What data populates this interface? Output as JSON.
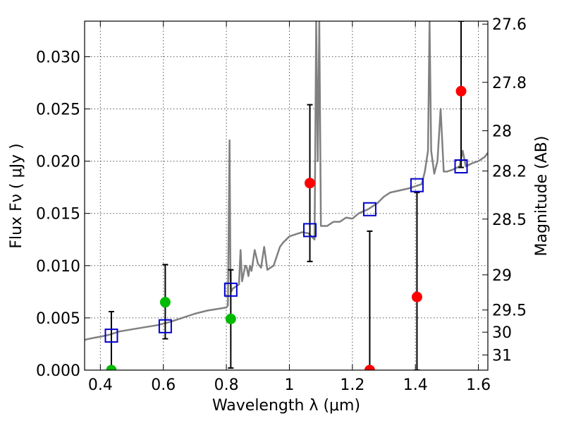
{
  "chart_data": {
    "type": "scatter",
    "xlabel": "Wavelength  λ (μm)",
    "ylabel_left": "Flux  Fν  ( μJy )",
    "ylabel_right": "Magnitude (AB)",
    "xlim": [
      0.35,
      1.63
    ],
    "ylim": [
      0.0,
      0.0334
    ],
    "x_ticks": [
      0.4,
      0.6,
      0.8,
      1.0,
      1.2,
      1.4,
      1.6
    ],
    "x_tick_labels": [
      "0.4",
      "0.6",
      "0.8",
      "1",
      "1.2",
      "1.4",
      "1.6"
    ],
    "y_ticks": [
      0.0,
      0.005,
      0.01,
      0.015,
      0.02,
      0.025,
      0.03
    ],
    "y_tick_labels": [
      "0.000",
      "0.005",
      "0.010",
      "0.015",
      "0.020",
      "0.025",
      "0.030"
    ],
    "mag_ticks": [
      27.6,
      27.8,
      28,
      28.2,
      28.5,
      29,
      29.5,
      30,
      31
    ],
    "mag_tick_labels": [
      "27.6",
      "27.8",
      "28",
      "28.2",
      "28.5",
      "29",
      "29.5",
      "30",
      "31"
    ],
    "grid": true,
    "colors": {
      "model": "#808080",
      "model_phot": "#0000cc",
      "detection": "#00bb00",
      "upper_limit": "#ff0000",
      "errorbar": "#000000"
    },
    "model_spectrum": [
      [
        0.35,
        0.0029
      ],
      [
        0.38,
        0.0031
      ],
      [
        0.4,
        0.0032
      ],
      [
        0.43,
        0.0034
      ],
      [
        0.46,
        0.0037
      ],
      [
        0.5,
        0.0039
      ],
      [
        0.54,
        0.0041
      ],
      [
        0.58,
        0.0043
      ],
      [
        0.62,
        0.0046
      ],
      [
        0.66,
        0.005
      ],
      [
        0.7,
        0.0054
      ],
      [
        0.74,
        0.0057
      ],
      [
        0.78,
        0.0059
      ],
      [
        0.8,
        0.006
      ],
      [
        0.805,
        0.0062
      ],
      [
        0.81,
        0.022
      ],
      [
        0.813,
        0.009
      ],
      [
        0.815,
        0.0075
      ],
      [
        0.82,
        0.0078
      ],
      [
        0.84,
        0.0082
      ],
      [
        0.845,
        0.0115
      ],
      [
        0.85,
        0.0085
      ],
      [
        0.86,
        0.01
      ],
      [
        0.865,
        0.0098
      ],
      [
        0.87,
        0.009
      ],
      [
        0.875,
        0.01
      ],
      [
        0.88,
        0.0095
      ],
      [
        0.89,
        0.0115
      ],
      [
        0.9,
        0.0102
      ],
      [
        0.91,
        0.0098
      ],
      [
        0.92,
        0.0118
      ],
      [
        0.93,
        0.0096
      ],
      [
        0.95,
        0.01
      ],
      [
        0.97,
        0.0118
      ],
      [
        0.98,
        0.0122
      ],
      [
        1.0,
        0.0128
      ],
      [
        1.02,
        0.013
      ],
      [
        1.04,
        0.0132
      ],
      [
        1.06,
        0.0131
      ],
      [
        1.08,
        0.0125
      ],
      [
        1.085,
        0.0334
      ],
      [
        1.09,
        0.02
      ],
      [
        1.095,
        0.0334
      ],
      [
        1.1,
        0.0138
      ],
      [
        1.12,
        0.0138
      ],
      [
        1.14,
        0.0142
      ],
      [
        1.16,
        0.0142
      ],
      [
        1.18,
        0.0146
      ],
      [
        1.2,
        0.0145
      ],
      [
        1.22,
        0.015
      ],
      [
        1.25,
        0.0154
      ],
      [
        1.28,
        0.016
      ],
      [
        1.3,
        0.0166
      ],
      [
        1.32,
        0.017
      ],
      [
        1.35,
        0.0172
      ],
      [
        1.38,
        0.0174
      ],
      [
        1.4,
        0.0176
      ],
      [
        1.42,
        0.0178
      ],
      [
        1.43,
        0.019
      ],
      [
        1.44,
        0.021
      ],
      [
        1.445,
        0.0334
      ],
      [
        1.45,
        0.021
      ],
      [
        1.46,
        0.0188
      ],
      [
        1.47,
        0.02
      ],
      [
        1.48,
        0.025
      ],
      [
        1.49,
        0.019
      ],
      [
        1.5,
        0.019
      ],
      [
        1.52,
        0.0192
      ],
      [
        1.54,
        0.0195
      ],
      [
        1.55,
        0.021
      ],
      [
        1.56,
        0.0195
      ],
      [
        1.58,
        0.0198
      ],
      [
        1.6,
        0.02
      ],
      [
        1.62,
        0.0204
      ],
      [
        1.63,
        0.0208
      ]
    ],
    "model_photometry": [
      {
        "x": 0.435,
        "y": 0.0033
      },
      {
        "x": 0.606,
        "y": 0.0042
      },
      {
        "x": 0.814,
        "y": 0.0077
      },
      {
        "x": 1.065,
        "y": 0.0134
      },
      {
        "x": 1.255,
        "y": 0.0154
      },
      {
        "x": 1.405,
        "y": 0.0177
      },
      {
        "x": 1.545,
        "y": 0.0195
      }
    ],
    "observed": [
      {
        "x": 0.435,
        "y": 0.0,
        "err_low": 0.0,
        "err_high": 0.0056,
        "kind": "detection"
      },
      {
        "x": 0.606,
        "y": 0.0065,
        "err_low": 0.003,
        "err_high": 0.0101,
        "kind": "detection"
      },
      {
        "x": 0.814,
        "y": 0.0049,
        "err_low": 0.0002,
        "err_high": 0.0096,
        "kind": "detection"
      },
      {
        "x": 1.065,
        "y": 0.0179,
        "err_low": 0.0104,
        "err_high": 0.0254,
        "kind": "upper_limit"
      },
      {
        "x": 1.255,
        "y": 0.0,
        "err_low": 0.0,
        "err_high": 0.0133,
        "kind": "upper_limit"
      },
      {
        "x": 1.405,
        "y": 0.007,
        "err_low": 0.0,
        "err_high": 0.017,
        "kind": "upper_limit"
      },
      {
        "x": 1.545,
        "y": 0.0267,
        "err_low": 0.0194,
        "err_high": 0.0334,
        "kind": "upper_limit"
      }
    ]
  }
}
